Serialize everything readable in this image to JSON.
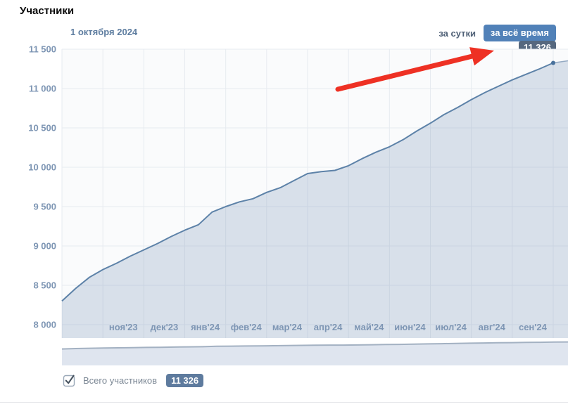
{
  "header": {
    "title": "Участники"
  },
  "chart_header": {
    "date_label": "1 октября 2024",
    "range_daily": "за сутки",
    "range_alltime": "за всё время",
    "current_value": "11 326"
  },
  "legend": {
    "label": "Всего участников",
    "value": "11 326",
    "checked": true
  },
  "colors": {
    "accent_button": "#5181b8",
    "badge_top": "#56687f",
    "badge_bottom": "#5e7b9e",
    "line": "#5d82a8",
    "area_fill": "rgba(129,154,185,0.28)",
    "plot_bg": "#fafbfc",
    "grid": "#e7ebf0",
    "axis_label": "#7e96b4",
    "mini_fill": "#dfe5ef",
    "mini_line": "#a3b1c2",
    "arrow_red": "#ee3124"
  },
  "chart_data": {
    "type": "area",
    "title": "Участники",
    "series_name": "Всего участников",
    "x_range": [
      "окт'23",
      "окт'24"
    ],
    "x_tick_labels": [
      "ноя'23",
      "дек'23",
      "янв'24",
      "фев'24",
      "мар'24",
      "апр'24",
      "май'24",
      "июн'24",
      "июл'24",
      "авг'24",
      "сен'24"
    ],
    "y_tick_values": [
      8000,
      8500,
      9000,
      9500,
      10000,
      10500,
      11000,
      11500
    ],
    "y_tick_labels": [
      "8 000",
      "8 500",
      "9 000",
      "9 500",
      "10 000",
      "10 500",
      "11 000",
      "11 500"
    ],
    "ylim": [
      8000,
      11500
    ],
    "grid": true,
    "legend_position": "bottom",
    "values": [
      8300,
      8460,
      8600,
      8700,
      8780,
      8870,
      8950,
      9030,
      9120,
      9200,
      9270,
      9430,
      9500,
      9560,
      9600,
      9680,
      9740,
      9830,
      9920,
      9945,
      9960,
      10020,
      10110,
      10190,
      10260,
      10350,
      10460,
      10560,
      10670,
      10760,
      10860,
      10950,
      11030,
      11110,
      11180,
      11250,
      11326
    ],
    "last_value": 11326,
    "last_value_label": "11 326",
    "annotation": {
      "shape": "arrow",
      "color": "#ee3124",
      "points_to": "current-value-badge"
    },
    "overview_strip": true
  }
}
